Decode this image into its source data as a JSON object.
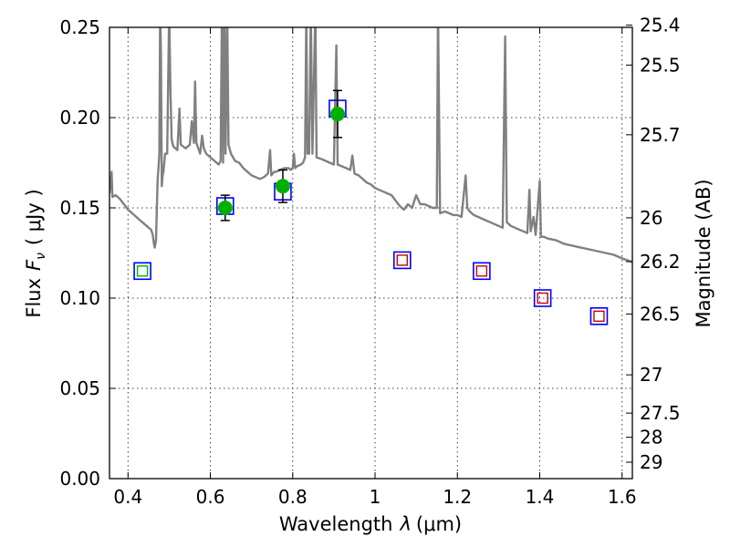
{
  "chart_data": {
    "type": "scatter",
    "xlabel_text": "Wavelength",
    "xlabel_symbol": "λ",
    "xlabel_unit": "(μm)",
    "ylabel_text": "Flux",
    "ylabel_symbol": "F",
    "ylabel_subscript": "ν",
    "ylabel_unit": "( μJy )",
    "y2label": "Magnitude (AB)",
    "xlim": [
      0.355,
      1.625
    ],
    "ylim": [
      0.0,
      0.25
    ],
    "grid": true,
    "x_ticks": [
      {
        "value": 0.4,
        "label": "0.4"
      },
      {
        "value": 0.6,
        "label": "0.6"
      },
      {
        "value": 0.8,
        "label": "0.8"
      },
      {
        "value": 1.0,
        "label": "1"
      },
      {
        "value": 1.2,
        "label": "1.2"
      },
      {
        "value": 1.4,
        "label": "1.4"
      },
      {
        "value": 1.6,
        "label": "1.6"
      }
    ],
    "y_ticks": [
      {
        "value": 0.0,
        "label": "0.00"
      },
      {
        "value": 0.05,
        "label": "0.05"
      },
      {
        "value": 0.1,
        "label": "0.10"
      },
      {
        "value": 0.15,
        "label": "0.15"
      },
      {
        "value": 0.2,
        "label": "0.20"
      },
      {
        "value": 0.25,
        "label": "0.25"
      }
    ],
    "y2_ticks": [
      {
        "flux": 0.2512,
        "label": "25.4"
      },
      {
        "flux": 0.2291,
        "label": "25.5"
      },
      {
        "flux": 0.1905,
        "label": "25.7"
      },
      {
        "flux": 0.1445,
        "label": "26"
      },
      {
        "flux": 0.1202,
        "label": "26.2"
      },
      {
        "flux": 0.0912,
        "label": "26.5"
      },
      {
        "flux": 0.0575,
        "label": "27"
      },
      {
        "flux": 0.0363,
        "label": "27.5"
      },
      {
        "flux": 0.0229,
        "label": "28"
      },
      {
        "flux": 0.0091,
        "label": "29"
      }
    ],
    "colors": {
      "spectrum": "#808080",
      "model_box": "#0000ff",
      "detection": "#00b000",
      "upper_limit_visible": "#00b000",
      "upper_limit_nir": "#cc0000",
      "errorbar": "#000000"
    },
    "model_points": [
      {
        "x": 0.435,
        "y": 0.115
      },
      {
        "x": 0.636,
        "y": 0.151
      },
      {
        "x": 0.776,
        "y": 0.159
      },
      {
        "x": 0.909,
        "y": 0.205
      },
      {
        "x": 1.066,
        "y": 0.121
      },
      {
        "x": 1.259,
        "y": 0.115
      },
      {
        "x": 1.407,
        "y": 0.1
      },
      {
        "x": 1.544,
        "y": 0.09
      }
    ],
    "detections": [
      {
        "x": 0.636,
        "y": 0.15,
        "err": 0.007
      },
      {
        "x": 0.776,
        "y": 0.162,
        "err": 0.009
      },
      {
        "x": 0.909,
        "y": 0.202,
        "err": 0.013
      }
    ],
    "upper_limits": [
      {
        "x": 0.435,
        "y": 0.115,
        "band": "visible"
      },
      {
        "x": 1.066,
        "y": 0.121,
        "band": "nir"
      },
      {
        "x": 1.259,
        "y": 0.115,
        "band": "nir"
      },
      {
        "x": 1.407,
        "y": 0.1,
        "band": "nir"
      },
      {
        "x": 1.544,
        "y": 0.09,
        "band": "nir"
      }
    ],
    "spectrum": [
      [
        0.355,
        0.158
      ],
      [
        0.36,
        0.17
      ],
      [
        0.362,
        0.156
      ],
      [
        0.37,
        0.157
      ],
      [
        0.38,
        0.155
      ],
      [
        0.39,
        0.152
      ],
      [
        0.4,
        0.149
      ],
      [
        0.41,
        0.147
      ],
      [
        0.42,
        0.145
      ],
      [
        0.43,
        0.143
      ],
      [
        0.44,
        0.141
      ],
      [
        0.45,
        0.139
      ],
      [
        0.456,
        0.138
      ],
      [
        0.46,
        0.135
      ],
      [
        0.463,
        0.13
      ],
      [
        0.465,
        0.128
      ],
      [
        0.468,
        0.132
      ],
      [
        0.47,
        0.15
      ],
      [
        0.472,
        0.166
      ],
      [
        0.474,
        0.172
      ],
      [
        0.476,
        0.18
      ],
      [
        0.478,
        0.26
      ],
      [
        0.48,
        0.235
      ],
      [
        0.482,
        0.162
      ],
      [
        0.484,
        0.168
      ],
      [
        0.486,
        0.17
      ],
      [
        0.49,
        0.18
      ],
      [
        0.495,
        0.18
      ],
      [
        0.5,
        0.26
      ],
      [
        0.503,
        0.215
      ],
      [
        0.506,
        0.188
      ],
      [
        0.51,
        0.184
      ],
      [
        0.52,
        0.182
      ],
      [
        0.525,
        0.205
      ],
      [
        0.528,
        0.185
      ],
      [
        0.54,
        0.183
      ],
      [
        0.55,
        0.185
      ],
      [
        0.555,
        0.198
      ],
      [
        0.56,
        0.186
      ],
      [
        0.563,
        0.22
      ],
      [
        0.566,
        0.186
      ],
      [
        0.575,
        0.18
      ],
      [
        0.58,
        0.19
      ],
      [
        0.584,
        0.183
      ],
      [
        0.59,
        0.18
      ],
      [
        0.6,
        0.178
      ],
      [
        0.61,
        0.176
      ],
      [
        0.62,
        0.174
      ],
      [
        0.625,
        0.176
      ],
      [
        0.628,
        0.26
      ],
      [
        0.631,
        0.175
      ],
      [
        0.634,
        0.26
      ],
      [
        0.637,
        0.18
      ],
      [
        0.641,
        0.26
      ],
      [
        0.644,
        0.185
      ],
      [
        0.65,
        0.18
      ],
      [
        0.66,
        0.176
      ],
      [
        0.67,
        0.175
      ],
      [
        0.68,
        0.172
      ],
      [
        0.69,
        0.17
      ],
      [
        0.7,
        0.168
      ],
      [
        0.71,
        0.167
      ],
      [
        0.72,
        0.166
      ],
      [
        0.73,
        0.167
      ],
      [
        0.74,
        0.169
      ],
      [
        0.745,
        0.182
      ],
      [
        0.748,
        0.168
      ],
      [
        0.755,
        0.17
      ],
      [
        0.76,
        0.17
      ],
      [
        0.77,
        0.171
      ],
      [
        0.78,
        0.172
      ],
      [
        0.79,
        0.172
      ],
      [
        0.795,
        0.171
      ],
      [
        0.8,
        0.172
      ],
      [
        0.803,
        0.18
      ],
      [
        0.806,
        0.172
      ],
      [
        0.81,
        0.173
      ],
      [
        0.82,
        0.174
      ],
      [
        0.825,
        0.175
      ],
      [
        0.83,
        0.178
      ],
      [
        0.833,
        0.26
      ],
      [
        0.836,
        0.18
      ],
      [
        0.84,
        0.18
      ],
      [
        0.844,
        0.26
      ],
      [
        0.848,
        0.18
      ],
      [
        0.855,
        0.26
      ],
      [
        0.858,
        0.178
      ],
      [
        0.87,
        0.177
      ],
      [
        0.88,
        0.176
      ],
      [
        0.89,
        0.175
      ],
      [
        0.9,
        0.174
      ],
      [
        0.906,
        0.24
      ],
      [
        0.909,
        0.174
      ],
      [
        0.92,
        0.173
      ],
      [
        0.93,
        0.172
      ],
      [
        0.94,
        0.171
      ],
      [
        0.945,
        0.179
      ],
      [
        0.95,
        0.169
      ],
      [
        0.96,
        0.168
      ],
      [
        0.97,
        0.166
      ],
      [
        0.98,
        0.164
      ],
      [
        0.99,
        0.163
      ],
      [
        1.0,
        0.161
      ],
      [
        1.02,
        0.159
      ],
      [
        1.04,
        0.157
      ],
      [
        1.05,
        0.154
      ],
      [
        1.06,
        0.151
      ],
      [
        1.07,
        0.149
      ],
      [
        1.08,
        0.152
      ],
      [
        1.09,
        0.15
      ],
      [
        1.1,
        0.157
      ],
      [
        1.11,
        0.152
      ],
      [
        1.12,
        0.152
      ],
      [
        1.14,
        0.15
      ],
      [
        1.15,
        0.15
      ],
      [
        1.153,
        0.26
      ],
      [
        1.158,
        0.147
      ],
      [
        1.17,
        0.148
      ],
      [
        1.18,
        0.147
      ],
      [
        1.19,
        0.146
      ],
      [
        1.2,
        0.146
      ],
      [
        1.21,
        0.145
      ],
      [
        1.22,
        0.168
      ],
      [
        1.224,
        0.15
      ],
      [
        1.23,
        0.148
      ],
      [
        1.24,
        0.146
      ],
      [
        1.25,
        0.145
      ],
      [
        1.26,
        0.144
      ],
      [
        1.27,
        0.143
      ],
      [
        1.28,
        0.142
      ],
      [
        1.29,
        0.141
      ],
      [
        1.3,
        0.14
      ],
      [
        1.31,
        0.139
      ],
      [
        1.316,
        0.245
      ],
      [
        1.32,
        0.142
      ],
      [
        1.33,
        0.14
      ],
      [
        1.34,
        0.139
      ],
      [
        1.35,
        0.138
      ],
      [
        1.36,
        0.137
      ],
      [
        1.37,
        0.136
      ],
      [
        1.375,
        0.16
      ],
      [
        1.378,
        0.137
      ],
      [
        1.385,
        0.145
      ],
      [
        1.39,
        0.135
      ],
      [
        1.4,
        0.165
      ],
      [
        1.403,
        0.134
      ],
      [
        1.41,
        0.134
      ],
      [
        1.42,
        0.133
      ],
      [
        1.44,
        0.132
      ],
      [
        1.46,
        0.13
      ],
      [
        1.48,
        0.129
      ],
      [
        1.5,
        0.128
      ],
      [
        1.52,
        0.127
      ],
      [
        1.54,
        0.126
      ],
      [
        1.56,
        0.125
      ],
      [
        1.58,
        0.124
      ],
      [
        1.6,
        0.122
      ],
      [
        1.625,
        0.12
      ]
    ]
  }
}
